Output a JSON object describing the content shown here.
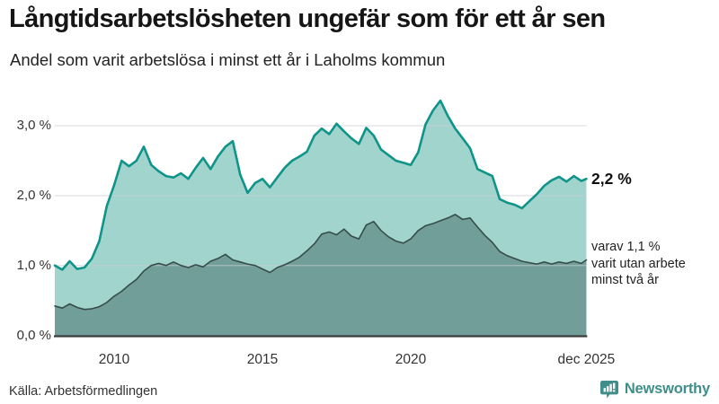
{
  "header": {
    "title": "Långtidsarbetslösheten ungefär som för ett år sen",
    "subtitle": "Andel som varit arbetslösa i minst ett år i Laholms kommun"
  },
  "chart_data": {
    "type": "area",
    "title": "Långtidsarbetslösheten ungefär som för ett år sen",
    "subtitle": "Andel som varit arbetslösa i minst ett år i Laholms kommun",
    "grid": true,
    "legend_position": "direct-labels-right",
    "xlim": [
      2008.0,
      2025.95
    ],
    "ylim": [
      0,
      3.6
    ],
    "x_unit": "year (monthly share of population, percent)",
    "x": [
      2008.0,
      2008.25,
      2008.5,
      2008.75,
      2009.0,
      2009.25,
      2009.5,
      2009.75,
      2010.0,
      2010.25,
      2010.5,
      2010.75,
      2011.0,
      2011.25,
      2011.5,
      2011.75,
      2012.0,
      2012.25,
      2012.5,
      2012.75,
      2013.0,
      2013.25,
      2013.5,
      2013.75,
      2014.0,
      2014.25,
      2014.5,
      2014.75,
      2015.0,
      2015.25,
      2015.5,
      2015.75,
      2016.0,
      2016.25,
      2016.5,
      2016.75,
      2017.0,
      2017.25,
      2017.5,
      2017.75,
      2018.0,
      2018.25,
      2018.5,
      2018.75,
      2019.0,
      2019.25,
      2019.5,
      2019.75,
      2020.0,
      2020.25,
      2020.5,
      2020.75,
      2021.0,
      2021.25,
      2021.5,
      2021.75,
      2022.0,
      2022.25,
      2022.5,
      2022.75,
      2023.0,
      2023.25,
      2023.5,
      2023.75,
      2024.0,
      2024.25,
      2024.5,
      2024.75,
      2025.0,
      2025.25,
      2025.5,
      2025.75,
      2025.92
    ],
    "series": [
      {
        "name": "Andel arbetslösa minst ett år",
        "end_label": "2,2 %",
        "line_color": "#0f9489",
        "fill_color": "#a2d4ce",
        "line_width": 2.6,
        "values": [
          1.0,
          0.94,
          1.06,
          0.95,
          0.97,
          1.1,
          1.35,
          1.85,
          2.15,
          2.5,
          2.42,
          2.5,
          2.7,
          2.44,
          2.35,
          2.28,
          2.26,
          2.32,
          2.24,
          2.4,
          2.54,
          2.38,
          2.56,
          2.7,
          2.78,
          2.3,
          2.04,
          2.18,
          2.24,
          2.12,
          2.26,
          2.4,
          2.5,
          2.56,
          2.63,
          2.86,
          2.96,
          2.88,
          3.03,
          2.92,
          2.82,
          2.74,
          2.97,
          2.86,
          2.66,
          2.58,
          2.5,
          2.47,
          2.44,
          2.62,
          3.02,
          3.22,
          3.36,
          3.14,
          2.96,
          2.82,
          2.68,
          2.38,
          2.33,
          2.28,
          1.95,
          1.9,
          1.87,
          1.82,
          1.92,
          2.02,
          2.14,
          2.22,
          2.27,
          2.2,
          2.28,
          2.21,
          2.24
        ]
      },
      {
        "name": "varav arbetslösa minst två år",
        "end_label": "varav 1,1 % varit utan arbete minst två år",
        "line_color": "#364d4b",
        "fill_color": "#719e99",
        "line_width": 1.6,
        "values": [
          0.42,
          0.39,
          0.45,
          0.4,
          0.37,
          0.38,
          0.41,
          0.47,
          0.56,
          0.63,
          0.72,
          0.8,
          0.92,
          1.0,
          1.03,
          1.0,
          1.05,
          1.0,
          0.97,
          1.01,
          0.98,
          1.06,
          1.1,
          1.16,
          1.08,
          1.05,
          1.02,
          1.0,
          0.95,
          0.9,
          0.97,
          1.01,
          1.06,
          1.12,
          1.21,
          1.31,
          1.45,
          1.48,
          1.44,
          1.52,
          1.42,
          1.38,
          1.58,
          1.63,
          1.5,
          1.41,
          1.35,
          1.32,
          1.38,
          1.5,
          1.57,
          1.6,
          1.64,
          1.68,
          1.73,
          1.66,
          1.68,
          1.55,
          1.43,
          1.33,
          1.2,
          1.14,
          1.1,
          1.06,
          1.04,
          1.02,
          1.05,
          1.02,
          1.05,
          1.03,
          1.06,
          1.03,
          1.08
        ]
      }
    ],
    "yticks": [
      {
        "v": 0,
        "label": "0,0 %"
      },
      {
        "v": 1,
        "label": "1,0 %"
      },
      {
        "v": 2,
        "label": "2,0 %"
      },
      {
        "v": 3,
        "label": "3,0 %"
      }
    ],
    "xticks": [
      {
        "v": 2010,
        "label": "2010"
      },
      {
        "v": 2015,
        "label": "2015"
      },
      {
        "v": 2020,
        "label": "2020"
      },
      {
        "v": 2025.92,
        "label": "dec 2025"
      }
    ],
    "grid_color": "#c9ccd4",
    "axis_line_color": "#3c3c3c"
  },
  "annotation": {
    "lines": [
      "varav 1,1 %",
      "varit utan arbete",
      "minst två år"
    ]
  },
  "footer": {
    "source": "Källa: Arbetsförmedlingen",
    "brand_name": "Newsworthy",
    "brand_color": "#3f8e89"
  }
}
